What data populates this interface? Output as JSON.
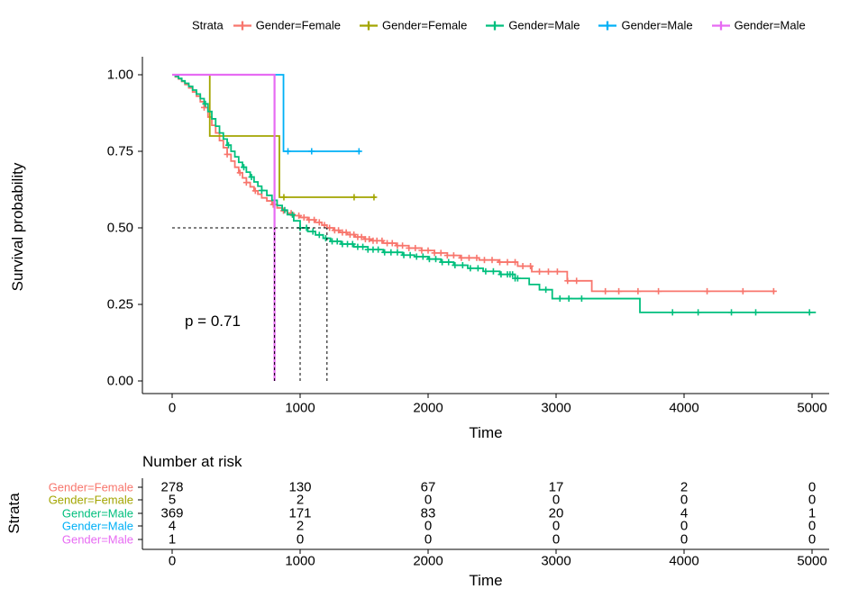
{
  "legend": {
    "title": "Strata",
    "items": [
      {
        "label": "Gender=Female",
        "color": "#F8766D"
      },
      {
        "label": "Gender=Female",
        "color": "#A3A500"
      },
      {
        "label": "Gender=Male",
        "color": "#00BF7D"
      },
      {
        "label": "Gender=Male",
        "color": "#00B0F6"
      },
      {
        "label": "Gender=Male",
        "color": "#E76BF3"
      }
    ]
  },
  "chart_data": {
    "type": "line",
    "subtype": "kaplan-meier-step",
    "title": "",
    "xlabel": "Time",
    "ylabel": "Survival probability",
    "xlim": [
      0,
      5250
    ],
    "ylim": [
      0,
      1
    ],
    "x_ticks": [
      0,
      1000,
      2000,
      3000,
      4000,
      5000
    ],
    "y_ticks": [
      1.0,
      0.75,
      0.5,
      0.25,
      0.0
    ],
    "p_label": "p = 0.71",
    "grid": false,
    "legend_position": "top",
    "reference_lines": {
      "h_line": {
        "y": 0.5,
        "x_from": 0,
        "x_to": 1210
      },
      "v_lines": [
        {
          "x": 800,
          "y_from": 0,
          "y_to": 0.5
        },
        {
          "x": 1000,
          "y_from": 0,
          "y_to": 0.5
        },
        {
          "x": 1210,
          "y_from": 0,
          "y_to": 0.5
        }
      ]
    },
    "series": [
      {
        "name": "Gender=Female",
        "color": "#F8766D",
        "linewidth": 1.8,
        "points": [
          [
            0,
            1.0
          ],
          [
            25,
            0.993
          ],
          [
            50,
            0.986
          ],
          [
            75,
            0.978
          ],
          [
            100,
            0.968
          ],
          [
            130,
            0.957
          ],
          [
            160,
            0.944
          ],
          [
            190,
            0.93
          ],
          [
            220,
            0.912
          ],
          [
            250,
            0.893
          ],
          [
            280,
            0.862
          ],
          [
            310,
            0.835
          ],
          [
            340,
            0.81
          ],
          [
            370,
            0.785
          ],
          [
            400,
            0.762
          ],
          [
            430,
            0.74
          ],
          [
            460,
            0.718
          ],
          [
            490,
            0.698
          ],
          [
            520,
            0.68
          ],
          [
            550,
            0.663
          ],
          [
            580,
            0.648
          ],
          [
            610,
            0.634
          ],
          [
            640,
            0.621
          ],
          [
            670,
            0.61
          ],
          [
            700,
            0.598
          ],
          [
            740,
            0.588
          ],
          [
            780,
            0.576
          ],
          [
            820,
            0.565
          ],
          [
            860,
            0.556
          ],
          [
            900,
            0.548
          ],
          [
            950,
            0.54
          ],
          [
            1000,
            0.534
          ],
          [
            1060,
            0.526
          ],
          [
            1120,
            0.518
          ],
          [
            1170,
            0.509
          ],
          [
            1210,
            0.5
          ],
          [
            1260,
            0.492
          ],
          [
            1310,
            0.485
          ],
          [
            1370,
            0.478
          ],
          [
            1430,
            0.47
          ],
          [
            1500,
            0.463
          ],
          [
            1563,
            0.458
          ],
          [
            1650,
            0.45
          ],
          [
            1750,
            0.442
          ],
          [
            1850,
            0.434
          ],
          [
            1950,
            0.426
          ],
          [
            2050,
            0.418
          ],
          [
            2150,
            0.41
          ],
          [
            2250,
            0.402
          ],
          [
            2400,
            0.395
          ],
          [
            2550,
            0.388
          ],
          [
            2700,
            0.375
          ],
          [
            2810,
            0.357
          ],
          [
            3087,
            0.327
          ],
          [
            3279,
            0.293
          ],
          [
            4710,
            0.293
          ]
        ],
        "censor_times": [
          250,
          430,
          530,
          580,
          650,
          790,
          870,
          930,
          990,
          1030,
          1070,
          1110,
          1150,
          1190,
          1230,
          1270,
          1300,
          1330,
          1360,
          1390,
          1420,
          1450,
          1480,
          1510,
          1540,
          1570,
          1600,
          1640,
          1680,
          1720,
          1760,
          1800,
          1850,
          1900,
          1950,
          2000,
          2050,
          2100,
          2150,
          2200,
          2260,
          2320,
          2380,
          2440,
          2500,
          2560,
          2620,
          2680,
          2740,
          2800,
          2870,
          2940,
          3010,
          3090,
          3160,
          3385,
          3490,
          3640,
          3800,
          4180,
          4460,
          4700
        ]
      },
      {
        "name": "Gender=Female",
        "color": "#A3A500",
        "linewidth": 1.8,
        "points": [
          [
            0,
            1.0
          ],
          [
            294,
            0.8
          ],
          [
            838,
            0.6
          ],
          [
            1590,
            0.6
          ]
        ],
        "censor_times": [
          873,
          1422,
          1577
        ]
      },
      {
        "name": "Gender=Male",
        "color": "#00BF7D",
        "linewidth": 1.8,
        "points": [
          [
            0,
            1.0
          ],
          [
            25,
            0.995
          ],
          [
            50,
            0.988
          ],
          [
            75,
            0.98
          ],
          [
            100,
            0.972
          ],
          [
            130,
            0.962
          ],
          [
            160,
            0.95
          ],
          [
            190,
            0.937
          ],
          [
            220,
            0.922
          ],
          [
            250,
            0.905
          ],
          [
            280,
            0.88
          ],
          [
            310,
            0.856
          ],
          [
            340,
            0.832
          ],
          [
            370,
            0.81
          ],
          [
            400,
            0.79
          ],
          [
            430,
            0.77
          ],
          [
            460,
            0.75
          ],
          [
            490,
            0.732
          ],
          [
            520,
            0.714
          ],
          [
            550,
            0.698
          ],
          [
            580,
            0.682
          ],
          [
            610,
            0.666
          ],
          [
            640,
            0.65
          ],
          [
            670,
            0.636
          ],
          [
            700,
            0.622
          ],
          [
            740,
            0.606
          ],
          [
            780,
            0.59
          ],
          [
            820,
            0.573
          ],
          [
            860,
            0.558
          ],
          [
            900,
            0.543
          ],
          [
            950,
            0.523
          ],
          [
            1000,
            0.5
          ],
          [
            1060,
            0.488
          ],
          [
            1120,
            0.477
          ],
          [
            1180,
            0.466
          ],
          [
            1237,
            0.456
          ],
          [
            1320,
            0.447
          ],
          [
            1420,
            0.438
          ],
          [
            1530,
            0.429
          ],
          [
            1650,
            0.42
          ],
          [
            1800,
            0.411
          ],
          [
            1894,
            0.406
          ],
          [
            2000,
            0.398
          ],
          [
            2100,
            0.388
          ],
          [
            2200,
            0.378
          ],
          [
            2310,
            0.368
          ],
          [
            2430,
            0.358
          ],
          [
            2560,
            0.348
          ],
          [
            2680,
            0.335
          ],
          [
            2790,
            0.315
          ],
          [
            2870,
            0.298
          ],
          [
            2970,
            0.269
          ],
          [
            3655,
            0.224
          ],
          [
            5030,
            0.224
          ]
        ],
        "censor_times": [
          260,
          440,
          560,
          620,
          700,
          800,
          880,
          940,
          1000,
          1050,
          1100,
          1150,
          1200,
          1250,
          1290,
          1330,
          1370,
          1410,
          1450,
          1490,
          1530,
          1570,
          1610,
          1660,
          1710,
          1760,
          1810,
          1860,
          1910,
          1960,
          2010,
          2060,
          2110,
          2160,
          2210,
          2270,
          2330,
          2390,
          2450,
          2510,
          2570,
          2620,
          2640,
          2660,
          2680,
          2700,
          2920,
          3030,
          3100,
          3200,
          3910,
          4110,
          4370,
          4560,
          4980
        ]
      },
      {
        "name": "Gender=Male",
        "color": "#00B0F6",
        "linewidth": 1.8,
        "points": [
          [
            0,
            1.0
          ],
          [
            870,
            0.75
          ],
          [
            1471,
            0.75
          ]
        ],
        "censor_times": [
          905,
          1090,
          1460
        ]
      },
      {
        "name": "Gender=Male",
        "color": "#E76BF3",
        "linewidth": 2.2,
        "points": [
          [
            0,
            1.0
          ],
          [
            800,
            0.0
          ]
        ],
        "censor_times": []
      }
    ]
  },
  "risk_table": {
    "title": "Number at risk",
    "ylabel": "Strata",
    "xlabel": "Time",
    "time_points": [
      0,
      1000,
      2000,
      3000,
      4000,
      5000
    ],
    "rows": [
      {
        "label": "Gender=Female",
        "color": "#F8766D",
        "values": [
          278,
          130,
          67,
          17,
          2,
          0
        ]
      },
      {
        "label": "Gender=Female",
        "color": "#A3A500",
        "values": [
          5,
          2,
          0,
          0,
          0,
          0
        ]
      },
      {
        "label": "Gender=Male",
        "color": "#00BF7D",
        "values": [
          369,
          171,
          83,
          20,
          4,
          1
        ]
      },
      {
        "label": "Gender=Male",
        "color": "#00B0F6",
        "values": [
          4,
          2,
          0,
          0,
          0,
          0
        ]
      },
      {
        "label": "Gender=Male",
        "color": "#E76BF3",
        "values": [
          1,
          0,
          0,
          0,
          0,
          0
        ]
      }
    ]
  }
}
